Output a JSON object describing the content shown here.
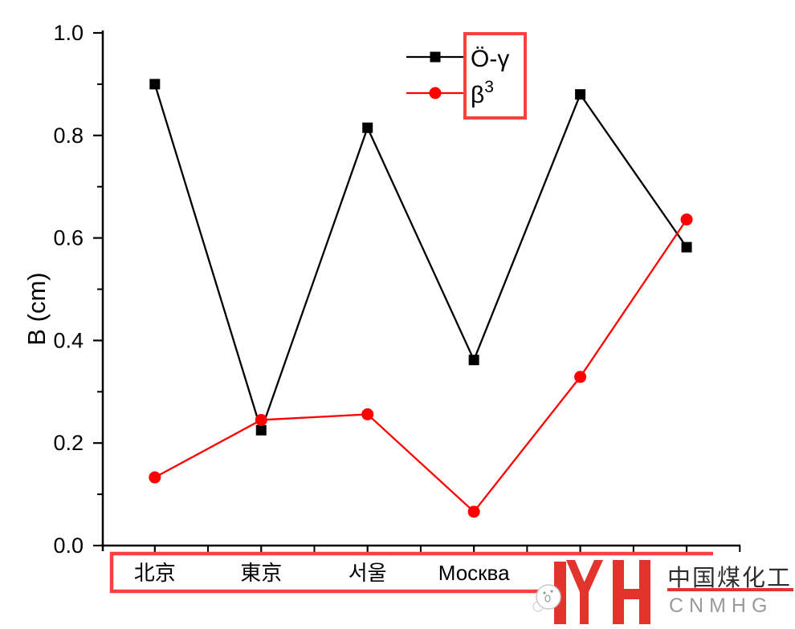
{
  "chart_data": {
    "type": "line",
    "title": "",
    "xlabel": "",
    "ylabel": "B (cm)",
    "ylim": [
      0.0,
      1.0
    ],
    "y_major_ticks": [
      "0.0",
      "0.2",
      "0.4",
      "0.6",
      "0.8",
      "1.0"
    ],
    "y_minor_ticks": [
      0.1,
      0.3,
      0.5,
      0.7,
      0.9
    ],
    "grid": false,
    "categories": [
      "北京",
      "東京",
      "서울",
      "Москва",
      "",
      ""
    ],
    "series": [
      {
        "name": "Ö-γ",
        "name_sup": "",
        "color": "#000000",
        "marker": "square",
        "values": [
          0.9,
          0.225,
          0.815,
          0.362,
          0.88,
          0.582
        ]
      },
      {
        "name": "β",
        "name_sup": "3",
        "color": "#ff0000",
        "marker": "circle",
        "values": [
          0.133,
          0.245,
          0.256,
          0.066,
          0.329,
          0.636
        ]
      }
    ],
    "legend_position": "top-right"
  },
  "logo": {
    "cn": "中国煤化工",
    "en": "CNMHG"
  },
  "colors": {
    "axis": "#000000",
    "series_black": "#000000",
    "series_red": "#ff0000",
    "box_red": "#fb4040",
    "logo_red": "#e2342c",
    "logo_cn_text": "#2e2e2e",
    "logo_en_text": "#9a9a9a"
  }
}
